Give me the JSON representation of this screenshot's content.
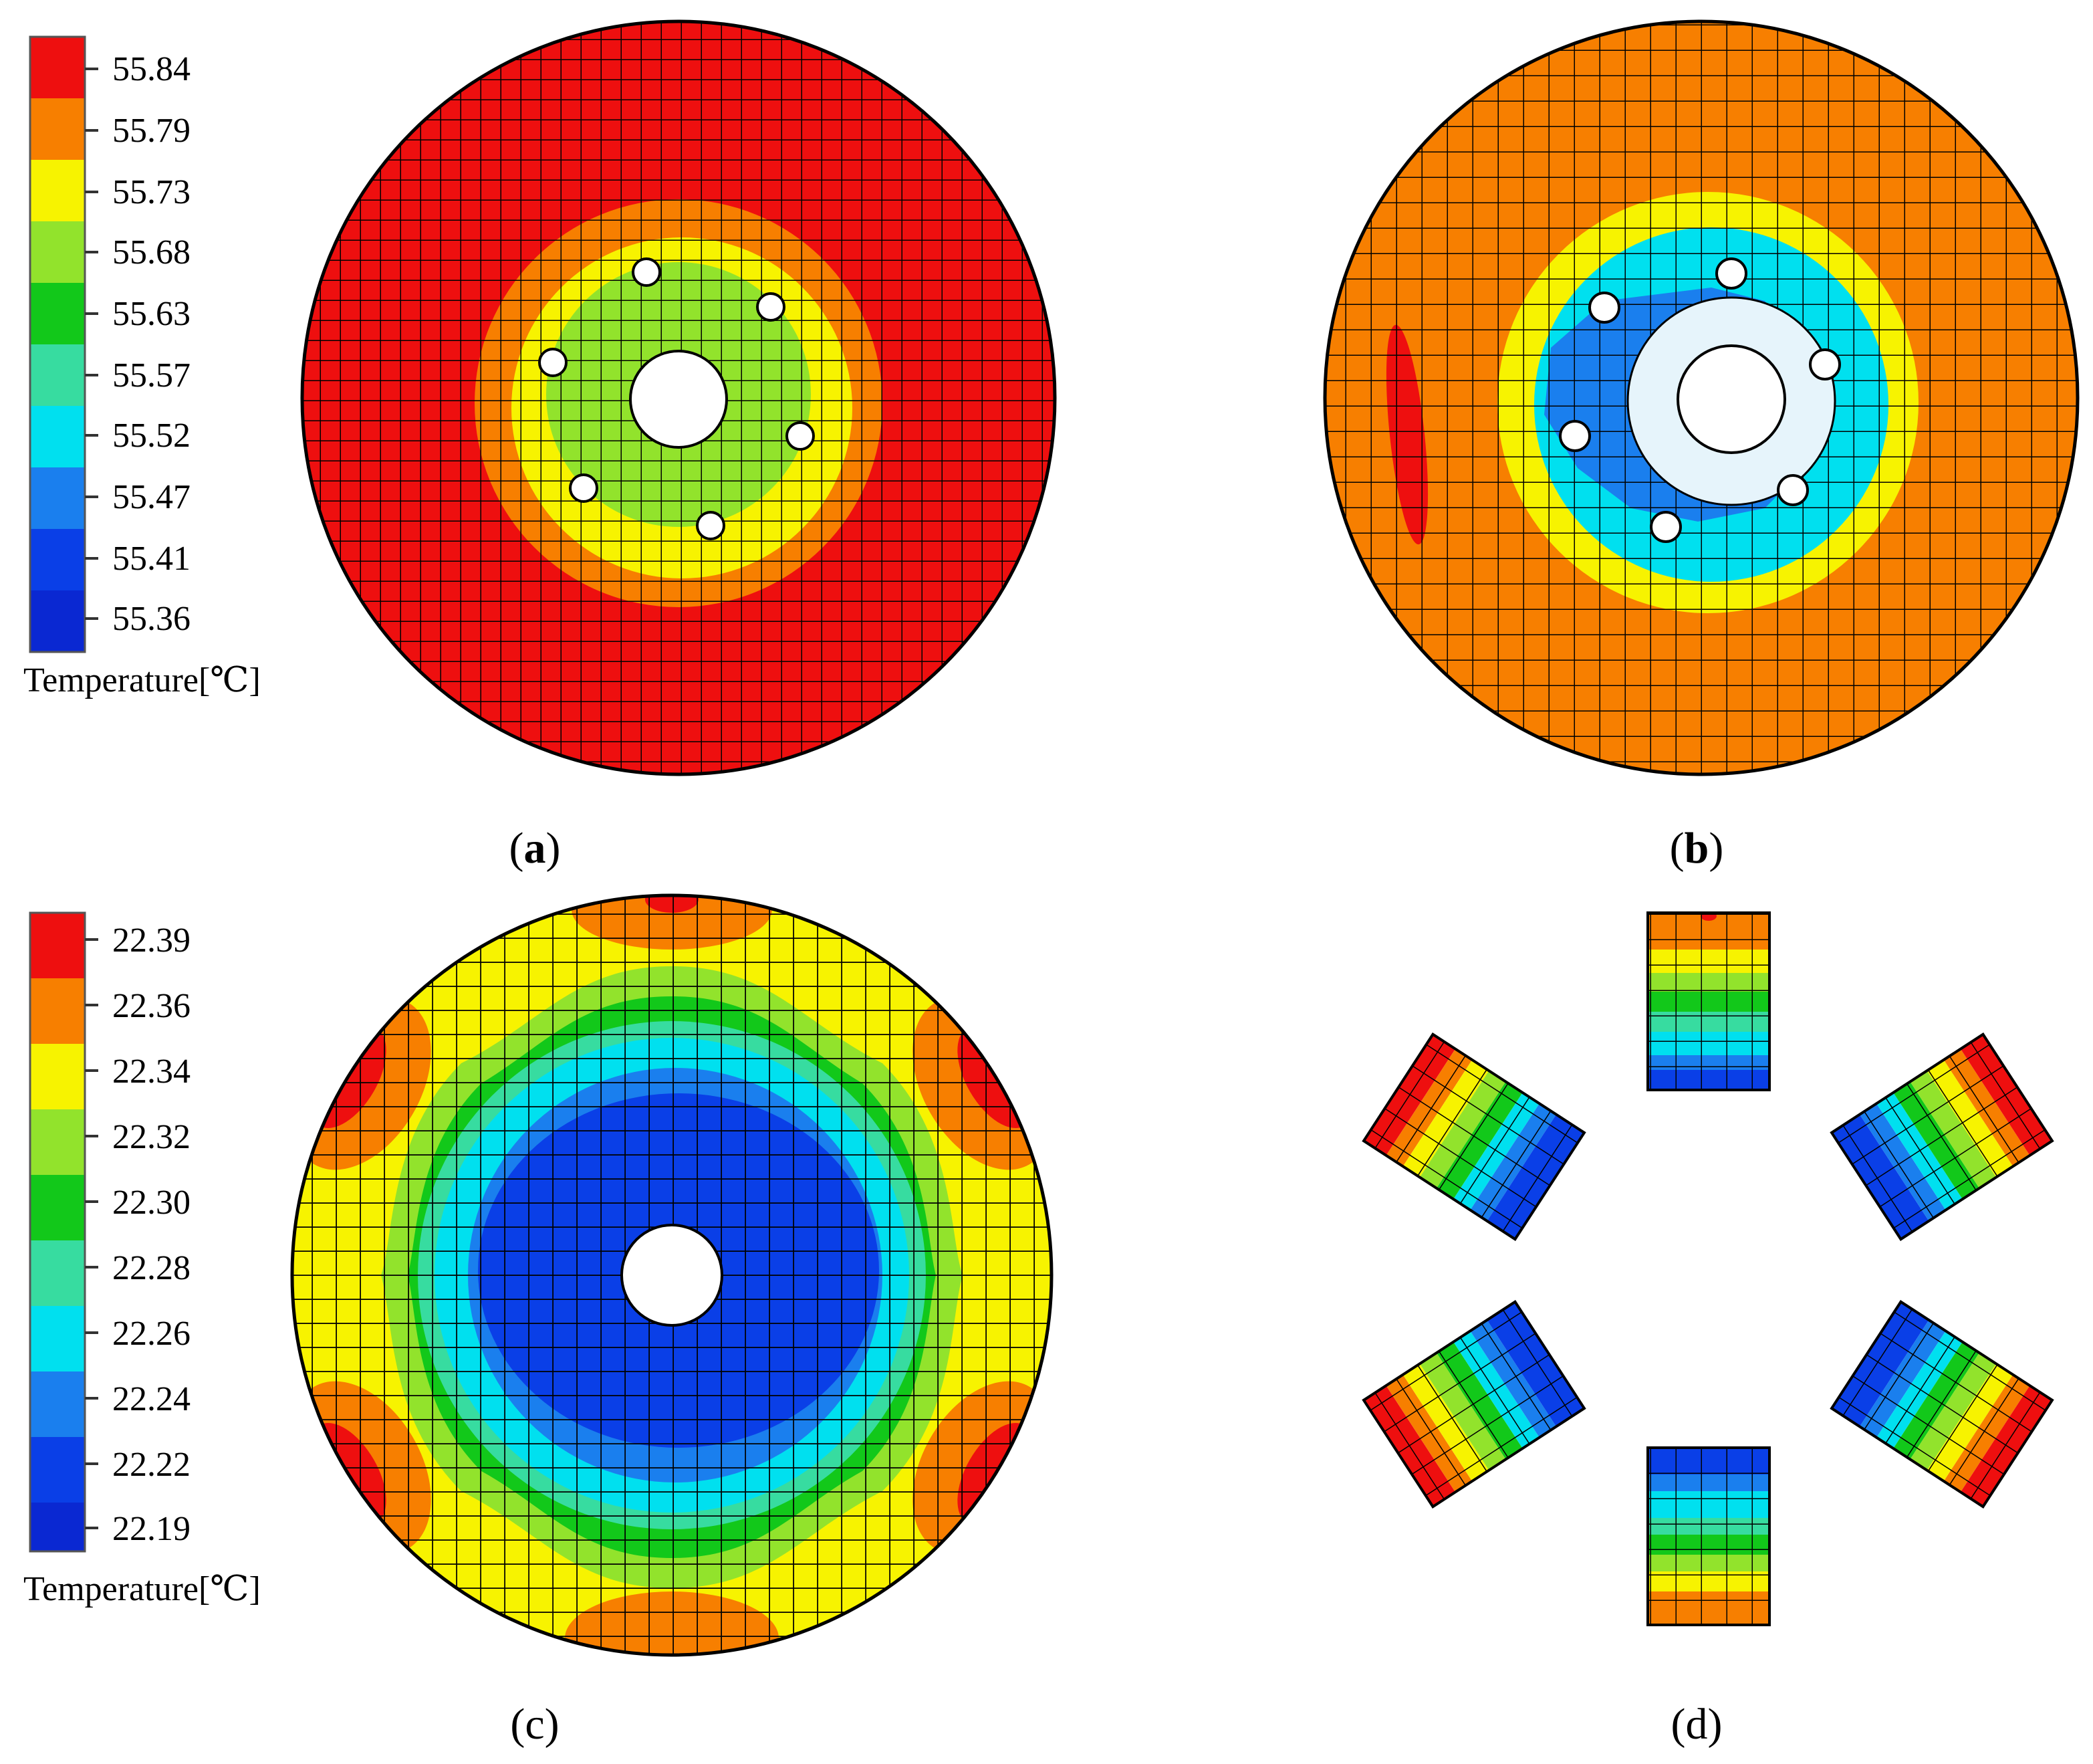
{
  "panels": {
    "a": {
      "caption_open": "(",
      "caption_letter": "a",
      "caption_close": ")",
      "legend": {
        "title": "Temperature[℃]",
        "labels": [
          "55.84",
          "55.79",
          "55.73",
          "55.68",
          "55.63",
          "55.57",
          "55.52",
          "55.47",
          "55.41",
          "55.36"
        ]
      }
    },
    "b": {
      "caption_open": "(",
      "caption_letter": "b",
      "caption_close": ")"
    },
    "c": {
      "caption": "(c)",
      "legend": {
        "title": "Temperature[℃]",
        "labels": [
          "22.39",
          "22.36",
          "22.34",
          "22.32",
          "22.30",
          "22.28",
          "22.26",
          "22.24",
          "22.22",
          "22.19"
        ]
      }
    },
    "d": {
      "caption": "(d)"
    }
  },
  "colors": {
    "scale": [
      "#ee0f0f",
      "#f77f00",
      "#f7f300",
      "#92e32c",
      "#12c81a",
      "#37dca0",
      "#00e0ef",
      "#1a7fee",
      "#0a3fe7",
      "#0a28d2"
    ],
    "mesh": "#000000"
  }
}
